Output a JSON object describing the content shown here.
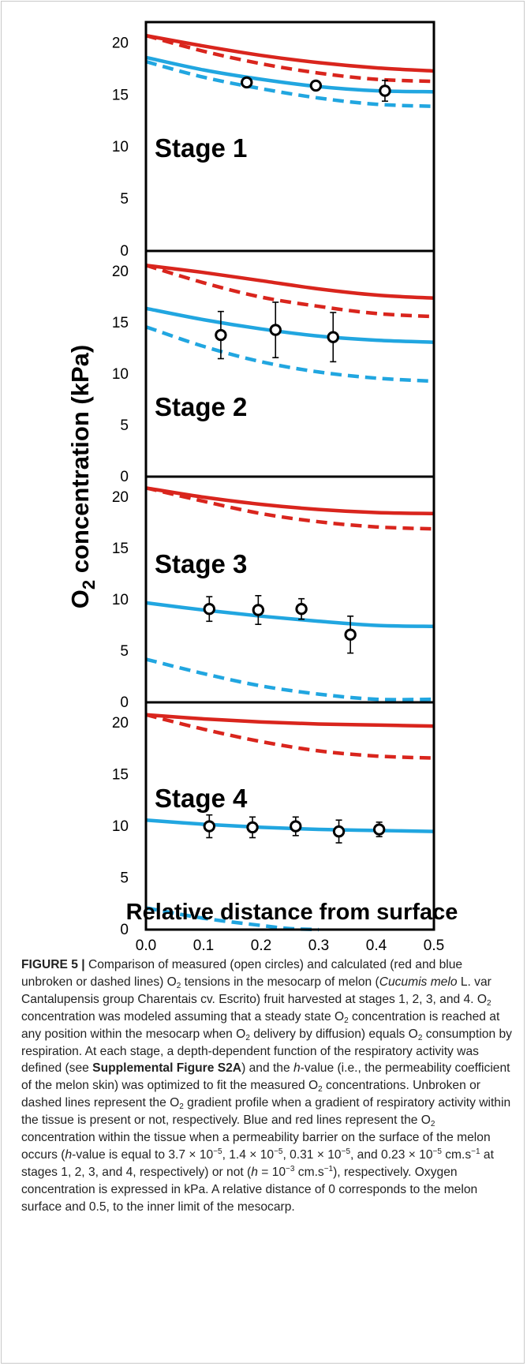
{
  "chart_data": [
    {
      "type": "line",
      "panel_label": "Stage 1",
      "ylim": [
        0,
        22
      ],
      "yticks": [
        0,
        5,
        10,
        15,
        20
      ],
      "xlim": [
        0,
        0.5
      ],
      "series": [
        {
          "color": "#d9251d",
          "style": "solid",
          "x": [
            0,
            0.1,
            0.2,
            0.3,
            0.4,
            0.5
          ],
          "y": [
            20.7,
            19.7,
            18.8,
            18.1,
            17.6,
            17.3
          ]
        },
        {
          "color": "#d9251d",
          "style": "dashed",
          "x": [
            0,
            0.1,
            0.2,
            0.3,
            0.4,
            0.5
          ],
          "y": [
            20.7,
            19.2,
            18.0,
            17.1,
            16.5,
            16.3
          ]
        },
        {
          "color": "#21a6e0",
          "style": "solid",
          "x": [
            0,
            0.1,
            0.2,
            0.3,
            0.4,
            0.5
          ],
          "y": [
            18.6,
            17.4,
            16.5,
            15.8,
            15.4,
            15.3
          ]
        },
        {
          "color": "#21a6e0",
          "style": "dashed",
          "x": [
            0,
            0.1,
            0.2,
            0.3,
            0.4,
            0.5
          ],
          "y": [
            18.2,
            16.7,
            15.6,
            14.7,
            14.1,
            13.9
          ]
        }
      ],
      "points": [
        {
          "x": 0.175,
          "y": 16.2,
          "err": 0
        },
        {
          "x": 0.295,
          "y": 15.9,
          "err": 0
        },
        {
          "x": 0.415,
          "y": 15.4,
          "err": 1.0
        }
      ]
    },
    {
      "type": "line",
      "panel_label": "Stage 2",
      "ylim": [
        0,
        22
      ],
      "yticks": [
        0,
        5,
        10,
        15,
        20
      ],
      "xlim": [
        0,
        0.5
      ],
      "series": [
        {
          "color": "#d9251d",
          "style": "solid",
          "x": [
            0,
            0.1,
            0.2,
            0.3,
            0.4,
            0.5
          ],
          "y": [
            20.6,
            19.9,
            19.1,
            18.3,
            17.7,
            17.4
          ]
        },
        {
          "color": "#d9251d",
          "style": "dashed",
          "x": [
            0,
            0.1,
            0.2,
            0.3,
            0.4,
            0.5
          ],
          "y": [
            20.6,
            18.9,
            17.5,
            16.6,
            15.9,
            15.6
          ]
        },
        {
          "color": "#21a6e0",
          "style": "solid",
          "x": [
            0,
            0.1,
            0.2,
            0.3,
            0.4,
            0.5
          ],
          "y": [
            16.4,
            15.3,
            14.4,
            13.7,
            13.3,
            13.1
          ]
        },
        {
          "color": "#21a6e0",
          "style": "dashed",
          "x": [
            0,
            0.1,
            0.2,
            0.3,
            0.4,
            0.5
          ],
          "y": [
            14.6,
            12.7,
            11.2,
            10.2,
            9.6,
            9.3
          ]
        }
      ],
      "points": [
        {
          "x": 0.13,
          "y": 13.8,
          "err": 2.3
        },
        {
          "x": 0.225,
          "y": 14.3,
          "err": 2.7
        },
        {
          "x": 0.325,
          "y": 13.6,
          "err": 2.4
        }
      ]
    },
    {
      "type": "line",
      "panel_label": "Stage 3",
      "ylim": [
        0,
        22
      ],
      "yticks": [
        0,
        5,
        10,
        15,
        20
      ],
      "xlim": [
        0,
        0.5
      ],
      "series": [
        {
          "color": "#d9251d",
          "style": "solid",
          "x": [
            0,
            0.1,
            0.2,
            0.3,
            0.4,
            0.5
          ],
          "y": [
            20.9,
            20.0,
            19.3,
            18.8,
            18.5,
            18.4
          ]
        },
        {
          "color": "#d9251d",
          "style": "dashed",
          "x": [
            0,
            0.1,
            0.2,
            0.3,
            0.4,
            0.5
          ],
          "y": [
            20.9,
            19.6,
            18.4,
            17.6,
            17.1,
            16.9
          ]
        },
        {
          "color": "#21a6e0",
          "style": "solid",
          "x": [
            0,
            0.1,
            0.2,
            0.3,
            0.4,
            0.5
          ],
          "y": [
            9.7,
            9.0,
            8.4,
            7.9,
            7.5,
            7.4
          ]
        },
        {
          "color": "#21a6e0",
          "style": "dashed",
          "x": [
            0,
            0.1,
            0.2,
            0.3,
            0.4,
            0.5
          ],
          "y": [
            4.2,
            2.8,
            1.6,
            0.8,
            0.3,
            0.3
          ]
        }
      ],
      "points": [
        {
          "x": 0.11,
          "y": 9.1,
          "err": 1.2
        },
        {
          "x": 0.195,
          "y": 9.0,
          "err": 1.4
        },
        {
          "x": 0.27,
          "y": 9.1,
          "err": 1.0
        },
        {
          "x": 0.355,
          "y": 6.6,
          "err": 1.8
        }
      ]
    },
    {
      "type": "line",
      "panel_label": "Stage 4",
      "ylim": [
        0,
        22
      ],
      "yticks": [
        0,
        5,
        10,
        15,
        20
      ],
      "xlim": [
        0,
        0.5
      ],
      "xticks": [
        "0.0",
        "0.1",
        "0.2",
        "0.3",
        "0.4",
        "0.5"
      ],
      "series": [
        {
          "color": "#d9251d",
          "style": "solid",
          "x": [
            0,
            0.1,
            0.2,
            0.3,
            0.4,
            0.5
          ],
          "y": [
            20.8,
            20.4,
            20.1,
            19.9,
            19.8,
            19.7
          ]
        },
        {
          "color": "#d9251d",
          "style": "dashed",
          "x": [
            0,
            0.1,
            0.2,
            0.3,
            0.4,
            0.5
          ],
          "y": [
            20.8,
            19.4,
            18.2,
            17.3,
            16.8,
            16.6
          ]
        },
        {
          "color": "#21a6e0",
          "style": "solid",
          "x": [
            0,
            0.1,
            0.2,
            0.3,
            0.4,
            0.5
          ],
          "y": [
            10.6,
            10.2,
            9.9,
            9.7,
            9.6,
            9.5
          ]
        },
        {
          "color": "#21a6e0",
          "style": "dashed",
          "x": [
            0,
            0.1,
            0.2,
            0.25,
            0.3
          ],
          "y": [
            2.1,
            1.1,
            0.4,
            0.1,
            0.0
          ]
        }
      ],
      "points": [
        {
          "x": 0.11,
          "y": 10.0,
          "err": 1.1
        },
        {
          "x": 0.185,
          "y": 9.9,
          "err": 1.0
        },
        {
          "x": 0.26,
          "y": 10.0,
          "err": 0.9
        },
        {
          "x": 0.335,
          "y": 9.5,
          "err": 1.1
        },
        {
          "x": 0.405,
          "y": 9.7,
          "err": 0.7
        }
      ]
    }
  ],
  "axes": {
    "ylabel_main": "O",
    "ylabel_sub": "2",
    "ylabel_rest": " concentration (kPa)",
    "xlabel": "Relative distance from surface"
  },
  "caption": {
    "fig_label": "FIGURE 5 |",
    "text": "Comparison of measured (open circles) and calculated (red and blue unbroken or dashed lines) O₂ tensions in the mesocarp of melon (Cucumis melo L. var Cantalupensis group Charentais cv. Escrito) fruit harvested at stages 1, 2, 3, and 4. O₂ concentration was modeled assuming that a steady state O₂ concentration is reached at any position within the mesocarp when O₂ delivery by diffusion) equals O₂ consumption by respiration. At each stage, a depth-dependent function of the respiratory activity was defined (see Supplemental Figure S2A) and the h-value (i.e., the permeability coefficient of the melon skin) was optimized to fit the measured O₂ concentrations. Unbroken or dashed lines represent the O₂ gradient profile when a gradient of respiratory activity within the tissue is present or not, respectively. Blue and red lines represent the O₂ concentration within the tissue when a permeability barrier on the surface of the melon occurs (h-value is equal to 3.7 × 10⁻⁵, 1.4 × 10⁻⁵, 0.31 × 10⁻⁵, and 0.23 × 10⁻⁵ cm.s⁻¹ at stages 1, 2, 3, and 4, respectively) or not (h = 10⁻³ cm.s⁻¹), respectively. Oxygen concentration is expressed in kPa. A relative distance of 0 corresponds to the melon surface and 0.5, to the inner limit of the mesocarp.",
    "seg_1": "Comparison of measured (open circles) and calculated (red and blue unbroken or dashed lines) O",
    "seg_2": " tensions in the mesocarp of melon (",
    "seg_3": "Cucumis melo",
    "seg_4": " L. var Cantalupensis group Charentais cv. Escrito) fruit harvested at stages 1, 2, 3, and 4. O",
    "seg_5": " concentration was modeled assuming that a steady state O",
    "seg_6": " concentration is reached at any position within the mesocarp when O",
    "seg_7": " delivery by diffusion) equals O",
    "seg_8": " consumption by respiration. At each stage, a depth-dependent function of the respiratory activity was defined (see ",
    "seg_9": "Supplemental Figure S2A",
    "seg_10": ") and the ",
    "seg_11": "h",
    "seg_12": "-value (i.e., the permeability coefficient of the melon skin) was optimized to fit the measured O",
    "seg_13": " concentrations. Unbroken or dashed lines represent the O",
    "seg_14": " gradient profile when a gradient of respiratory activity within the tissue is present or not, respectively. Blue and red lines represent the O",
    "seg_15": " concentration within the tissue when a permeability barrier on the surface of the melon occurs (",
    "seg_16": "h",
    "seg_17": "-value is equal to 3.7 × 10",
    "seg_18": ", 1.4 × 10",
    "seg_19": ", 0.31 × 10",
    "seg_20": ", and 0.23 × 10",
    "seg_21": " cm.s",
    "seg_22": " at stages 1, 2, 3, and 4, respectively) or not (",
    "seg_23": "h",
    "seg_24": " = 10",
    "seg_25": " cm.s",
    "seg_26": "), respectively. Oxygen concentration is expressed in kPa. A relative distance of 0 corresponds to the melon surface and 0.5, to the inner limit of the mesocarp.",
    "sub_2": "2",
    "sup_m5": "−5",
    "sup_m3": "−3",
    "sup_m1": "−1"
  }
}
